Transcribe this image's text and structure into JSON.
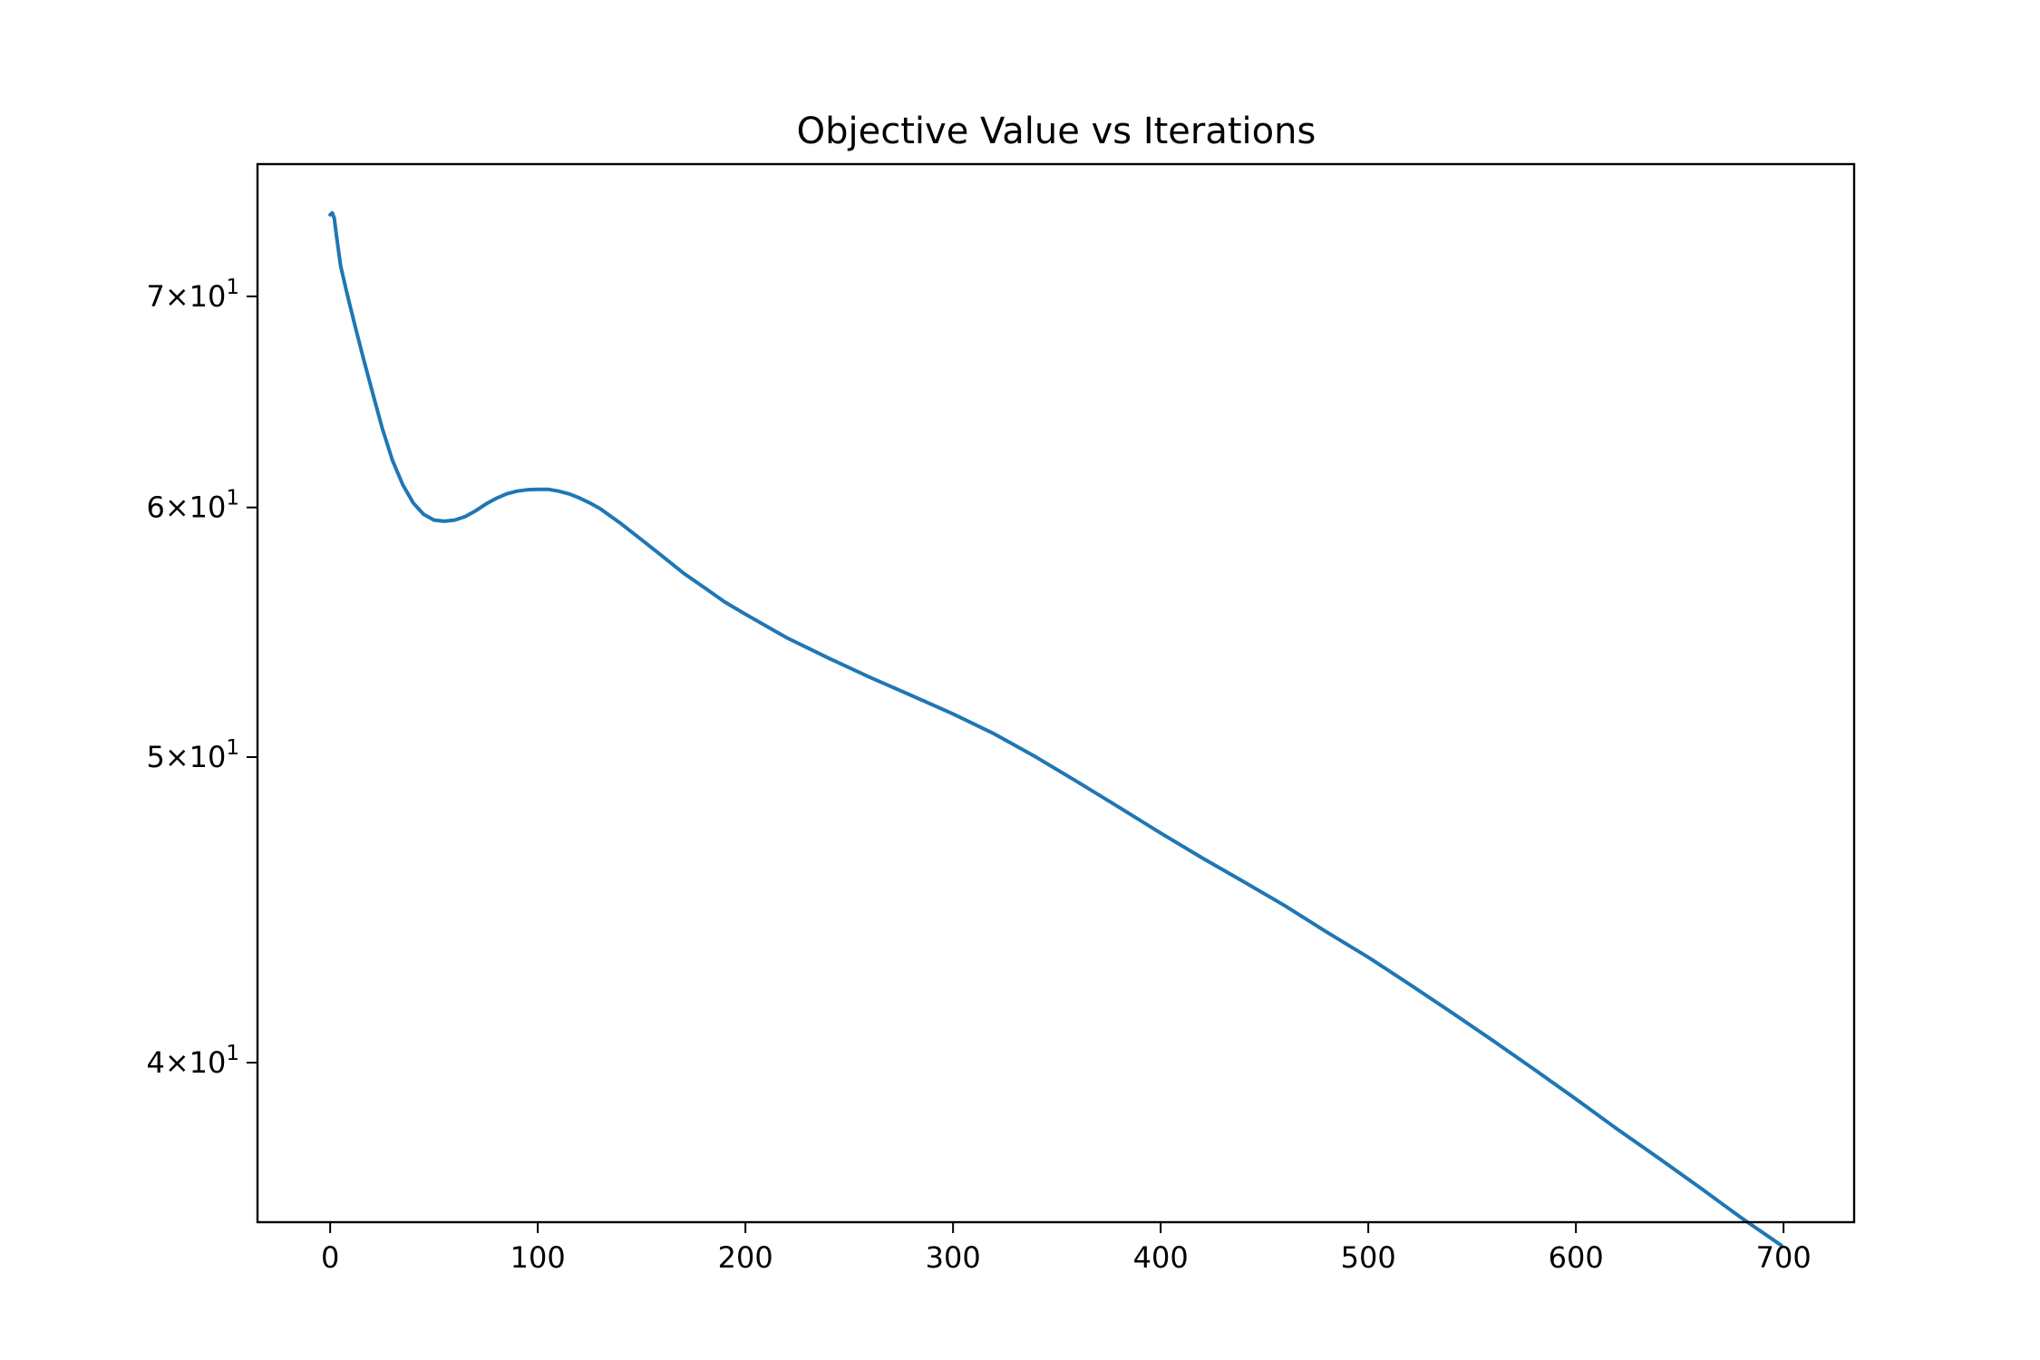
{
  "chart_data": {
    "type": "line",
    "title": "Objective Value vs Iterations",
    "xlabel": "",
    "ylabel": "",
    "xlim": [
      -35,
      734
    ],
    "ylim": [
      35.6,
      77.1
    ],
    "yscale": "log",
    "grid": false,
    "x_ticks": [
      {
        "value": 0,
        "label": "0"
      },
      {
        "value": 100,
        "label": "100"
      },
      {
        "value": 200,
        "label": "200"
      },
      {
        "value": 300,
        "label": "300"
      },
      {
        "value": 400,
        "label": "400"
      },
      {
        "value": 500,
        "label": "500"
      },
      {
        "value": 600,
        "label": "600"
      },
      {
        "value": 700,
        "label": "700"
      }
    ],
    "y_ticks": [
      {
        "value": 40,
        "mantissa": "4",
        "base": "10",
        "exponent": "1"
      },
      {
        "value": 50,
        "mantissa": "5",
        "base": "10",
        "exponent": "1"
      },
      {
        "value": 60,
        "mantissa": "6",
        "base": "10",
        "exponent": "1"
      },
      {
        "value": 70,
        "mantissa": "7",
        "base": "10",
        "exponent": "1"
      }
    ],
    "series": [
      {
        "color": "#1f77b4",
        "x": [
          0,
          1,
          2,
          3,
          5,
          8,
          12,
          16,
          20,
          25,
          30,
          35,
          40,
          45,
          50,
          55,
          60,
          65,
          70,
          75,
          80,
          85,
          90,
          95,
          100,
          105,
          110,
          115,
          120,
          125,
          130,
          140,
          150,
          160,
          170,
          180,
          190,
          200,
          220,
          240,
          260,
          280,
          300,
          320,
          340,
          360,
          380,
          400,
          420,
          440,
          460,
          480,
          500,
          520,
          540,
          560,
          580,
          600,
          620,
          640,
          660,
          680,
          699
        ],
        "y": [
          74.3,
          74.4,
          74.1,
          73.2,
          71.6,
          70.2,
          68.5,
          66.9,
          65.4,
          63.6,
          62.1,
          61.0,
          60.2,
          59.7,
          59.45,
          59.4,
          59.45,
          59.6,
          59.85,
          60.15,
          60.4,
          60.6,
          60.72,
          60.78,
          60.8,
          60.8,
          60.72,
          60.6,
          60.42,
          60.2,
          59.95,
          59.3,
          58.6,
          57.9,
          57.2,
          56.6,
          56.0,
          55.5,
          54.55,
          53.75,
          53.0,
          52.3,
          51.6,
          50.85,
          50.0,
          49.1,
          48.2,
          47.3,
          46.45,
          45.65,
          44.85,
          44.0,
          43.2,
          42.35,
          41.5,
          40.65,
          39.8,
          38.95,
          38.1,
          37.3,
          36.5,
          35.7,
          35.0
        ]
      }
    ]
  }
}
